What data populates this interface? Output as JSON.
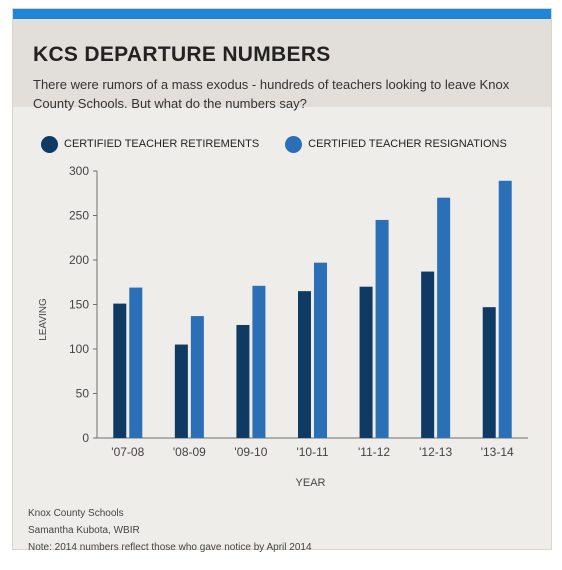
{
  "header": {
    "title": "KCS DEPARTURE NUMBERS",
    "subtitle": "There were rumors of a mass exodus - hundreds of teachers looking to leave Knox County Schools. But what do the numbers say?"
  },
  "colors": {
    "accent": "#1e86d6",
    "retirements": "#0f3a63",
    "resignations": "#2b6fb6"
  },
  "legend_placement": "top-left",
  "chart_data": {
    "type": "bar",
    "categories": [
      "'07-08",
      "'08-09",
      "'09-10",
      "'10-11",
      "'11-12",
      "'12-13",
      "'13-14"
    ],
    "series": [
      {
        "name": "CERTIFIED TEACHER RETIREMENTS",
        "values": [
          151,
          105,
          127,
          165,
          170,
          187,
          147
        ]
      },
      {
        "name": "CERTIFIED TEACHER RESIGNATIONS",
        "values": [
          169,
          137,
          171,
          197,
          245,
          270,
          289
        ]
      }
    ],
    "xlabel": "YEAR",
    "ylabel": "LEAVING",
    "ylim": [
      0,
      300
    ],
    "yticks": [
      0,
      50,
      100,
      150,
      200,
      250,
      300
    ],
    "grid": false
  },
  "footer": {
    "source": "Knox County Schools",
    "credit": "Samantha Kubota, WBIR",
    "note": "Note: 2014 numbers reflect those who gave notice by April 2014"
  }
}
